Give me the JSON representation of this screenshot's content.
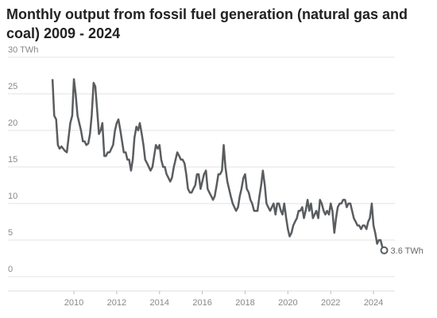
{
  "chart_data": {
    "type": "line",
    "title": "Monthly output from fossil fuel generation (natural gas and coal) 2009 - 2024",
    "x": [
      2009.0,
      2009.08,
      2009.17,
      2009.25,
      2009.33,
      2009.42,
      2009.5,
      2009.58,
      2009.67,
      2009.75,
      2009.83,
      2009.92,
      2010.0,
      2010.08,
      2010.17,
      2010.25,
      2010.33,
      2010.42,
      2010.5,
      2010.58,
      2010.67,
      2010.75,
      2010.83,
      2010.92,
      2011.0,
      2011.08,
      2011.17,
      2011.25,
      2011.33,
      2011.42,
      2011.5,
      2011.58,
      2011.67,
      2011.75,
      2011.83,
      2011.92,
      2012.0,
      2012.08,
      2012.17,
      2012.25,
      2012.33,
      2012.42,
      2012.5,
      2012.58,
      2012.67,
      2012.75,
      2012.83,
      2012.92,
      2013.0,
      2013.08,
      2013.17,
      2013.25,
      2013.33,
      2013.42,
      2013.5,
      2013.58,
      2013.67,
      2013.75,
      2013.83,
      2013.92,
      2014.0,
      2014.08,
      2014.17,
      2014.25,
      2014.33,
      2014.42,
      2014.5,
      2014.58,
      2014.67,
      2014.75,
      2014.83,
      2014.92,
      2015.0,
      2015.08,
      2015.17,
      2015.25,
      2015.33,
      2015.42,
      2015.5,
      2015.58,
      2015.67,
      2015.75,
      2015.83,
      2015.92,
      2016.0,
      2016.08,
      2016.17,
      2016.25,
      2016.33,
      2016.42,
      2016.5,
      2016.58,
      2016.67,
      2016.75,
      2016.83,
      2016.92,
      2017.0,
      2017.08,
      2017.17,
      2017.25,
      2017.33,
      2017.42,
      2017.5,
      2017.58,
      2017.67,
      2017.75,
      2017.83,
      2017.92,
      2018.0,
      2018.08,
      2018.17,
      2018.25,
      2018.33,
      2018.42,
      2018.5,
      2018.58,
      2018.67,
      2018.75,
      2018.83,
      2018.92,
      2019.0,
      2019.08,
      2019.17,
      2019.25,
      2019.33,
      2019.42,
      2019.5,
      2019.58,
      2019.67,
      2019.75,
      2019.83,
      2019.92,
      2020.0,
      2020.08,
      2020.17,
      2020.25,
      2020.33,
      2020.42,
      2020.5,
      2020.58,
      2020.67,
      2020.75,
      2020.83,
      2020.92,
      2021.0,
      2021.08,
      2021.17,
      2021.25,
      2021.33,
      2021.42,
      2021.5,
      2021.58,
      2021.67,
      2021.75,
      2021.83,
      2021.92,
      2022.0,
      2022.08,
      2022.17,
      2022.25,
      2022.33,
      2022.42,
      2022.5,
      2022.58,
      2022.67,
      2022.75,
      2022.83,
      2022.92,
      2023.0,
      2023.08,
      2023.17,
      2023.25,
      2023.33,
      2023.42,
      2023.5,
      2023.58,
      2023.67,
      2023.75,
      2023.83,
      2023.92,
      2024.0,
      2024.08,
      2024.17,
      2024.25,
      2024.33,
      2024.42,
      2024.5
    ],
    "series": [
      {
        "color": "#5a5d60",
        "values": [
          27,
          22,
          21.5,
          18,
          17.5,
          17.8,
          17.5,
          17.2,
          17,
          19,
          21,
          22,
          27,
          25,
          22,
          21,
          20,
          18.5,
          18.5,
          18,
          18.2,
          19.5,
          22,
          26.5,
          26,
          23,
          19.5,
          20,
          21,
          16.5,
          16.5,
          17,
          17,
          17.5,
          18,
          20,
          21,
          21.5,
          20,
          18.5,
          17,
          17,
          16,
          16,
          14.5,
          16,
          19,
          20.5,
          20,
          21,
          19.5,
          18,
          16,
          15.5,
          15,
          14.5,
          15,
          16.5,
          18,
          17.5,
          18,
          16,
          15,
          15,
          14,
          13.5,
          13,
          13.5,
          15,
          16,
          17,
          16.5,
          16,
          16,
          15.5,
          14,
          12,
          11.5,
          11.5,
          12,
          12.5,
          14,
          14,
          12,
          13,
          14,
          14.5,
          12,
          11.5,
          11,
          10.5,
          11,
          12.5,
          14,
          14,
          14.5,
          18,
          15,
          13,
          12,
          11,
          10,
          9.5,
          9,
          9.5,
          11,
          12,
          13.5,
          14,
          12,
          11.5,
          10.5,
          10,
          9,
          9,
          9,
          11,
          12.5,
          14.5,
          12.5,
          10,
          9.5,
          9,
          9.5,
          10,
          8.5,
          10,
          10,
          9,
          8.5,
          10,
          8,
          6.5,
          5.5,
          6,
          7,
          7.5,
          8,
          9,
          9,
          9.5,
          8,
          9,
          10.5,
          9,
          10,
          8,
          8.5,
          9,
          8,
          10.5,
          10,
          9,
          8.5,
          9,
          8.5,
          10,
          9,
          6,
          8,
          9.5,
          10,
          10,
          10.5,
          10.5,
          9.5,
          10,
          10,
          9,
          8,
          7.5,
          7,
          7,
          6.5,
          7,
          7,
          6.5,
          7.5,
          8,
          10,
          7,
          6,
          4.5,
          5,
          5,
          4,
          3.6
        ]
      }
    ],
    "end_label": "3.6 TWh",
    "xlim": [
      2007.5,
      2025
    ],
    "xticks": [
      2010,
      2012,
      2014,
      2016,
      2018,
      2020,
      2022,
      2024
    ],
    "ylim": [
      0,
      30
    ],
    "yticks": [
      0,
      5,
      10,
      15,
      20,
      25,
      {
        "value": 30,
        "label": "30 TWh"
      }
    ],
    "grid": true
  }
}
